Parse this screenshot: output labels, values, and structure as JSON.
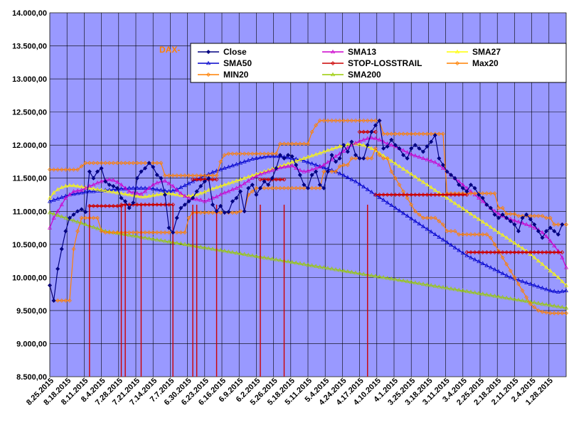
{
  "chart_data": {
    "type": "line",
    "title": "DAX-",
    "xlabel": "",
    "ylabel": "",
    "ylim": [
      8500,
      14000
    ],
    "yticks": [
      "14.000,00",
      "13.500,00",
      "13.000,00",
      "12.500,00",
      "12.000,00",
      "11.500,00",
      "11.000,00",
      "10.500,00",
      "10.000,00",
      "9.500,00",
      "9.000,00",
      "8.500,00"
    ],
    "ytick_values": [
      14000,
      13500,
      13000,
      12500,
      12000,
      11500,
      11000,
      10500,
      10000,
      9500,
      9000,
      8500
    ],
    "xticks": [
      "8.25.2015",
      "8.18.2015",
      "8.11.2015",
      "8.4.2015",
      "7.28.2015",
      "7.21.2015",
      "7.14.2015",
      "7.7.2015",
      "6.30.2015",
      "6.23.2015",
      "6.16.2015",
      "6.9.2015",
      "6.2.2015",
      "5.26.2015",
      "5.18.2015",
      "5.11.2015",
      "5.4.2015",
      "4.24.2015",
      "4.17.2015",
      "4.10.2015",
      "4.1.2015",
      "3.25.2015",
      "3.18.2015",
      "3.11.2015",
      "3.4.2015",
      "2.25.2015",
      "2.18.2015",
      "2.11.2015",
      "2.4.2015",
      "1.28.2015"
    ],
    "x_direction": "descending dates left to right",
    "grid": true,
    "legend_placement": "top",
    "series": [
      {
        "name": "Close",
        "color": "#000080",
        "marker": "diamond-filled",
        "values": [
          9880,
          9650,
          10130,
          10430,
          10700,
          10900,
          10950,
          11000,
          11030,
          10990,
          11600,
          11500,
          11600,
          11650,
          11450,
          11400,
          11380,
          11350,
          11200,
          11150,
          11050,
          11130,
          11500,
          11600,
          11650,
          11730,
          11670,
          11550,
          11500,
          11250,
          10750,
          10680,
          10900,
          11050,
          11100,
          11150,
          11200,
          11300,
          11380,
          11450,
          11500,
          11100,
          11000,
          11080,
          10980,
          10990,
          11150,
          11200,
          11300,
          11000,
          11350,
          11400,
          11250,
          11350,
          11450,
          11400,
          11500,
          11650,
          11850,
          11800,
          11850,
          11830,
          11700,
          11550,
          11400,
          11350,
          11550,
          11600,
          11400,
          11350,
          11600,
          11850,
          11750,
          11800,
          12000,
          11900,
          12050,
          11850,
          11800,
          11800,
          12000,
          12200,
          12300,
          12370,
          11950,
          11980,
          12080,
          12000,
          11950,
          11850,
          11800,
          11950,
          12000,
          11950,
          11900,
          11980,
          12050,
          12150,
          11800,
          11700,
          11600,
          11550,
          11500,
          11400,
          11350,
          11300,
          11400,
          11350,
          11250,
          11200,
          11100,
          11050,
          10950,
          10900,
          10950,
          10900,
          10850,
          10800,
          10700,
          10900,
          10950,
          10880,
          10800,
          10700,
          10600,
          10700,
          10750,
          10700,
          10650,
          10800
        ]
      },
      {
        "name": "SMA13",
        "color": "#cc00cc",
        "marker": "triangle-open",
        "values": [
          10750,
          10900,
          11000,
          11100,
          11200,
          11250,
          11300,
          11310,
          11320,
          11350,
          11380,
          11400,
          11430,
          11450,
          11470,
          11480,
          11470,
          11440,
          11400,
          11350,
          11300,
          11280,
          11270,
          11260,
          11300,
          11350,
          11400,
          11430,
          11450,
          11460,
          11420,
          11380,
          11320,
          11270,
          11230,
          11200,
          11190,
          11180,
          11170,
          11150,
          11170,
          11200,
          11220,
          11250,
          11280,
          11300,
          11330,
          11350,
          11380,
          11420,
          11460,
          11500,
          11530,
          11560,
          11580,
          11600,
          11620,
          11640,
          11660,
          11670,
          11680,
          11690,
          11650,
          11620,
          11600,
          11610,
          11630,
          11650,
          11670,
          11700,
          11740,
          11780,
          11830,
          11870,
          11910,
          11960,
          12000,
          12030,
          12060,
          12080,
          12100,
          12110,
          12100,
          12080,
          12050,
          12020,
          12000,
          11980,
          11950,
          11920,
          11890,
          11860,
          11840,
          11820,
          11800,
          11780,
          11760,
          11740,
          11700,
          11650,
          11600,
          11550,
          11500,
          11450,
          11400,
          11350,
          11300,
          11250,
          11200,
          11150,
          11100,
          11050,
          11000,
          10960,
          10930,
          10900,
          10880,
          10860,
          10840,
          10820,
          10800,
          10780,
          10750,
          10720,
          10680,
          10620,
          10550,
          10480,
          10400,
          10300,
          10150
        ]
      },
      {
        "name": "SMA27",
        "color": "#ffff00",
        "marker": "triangle-open",
        "values": [
          11200,
          11280,
          11330,
          11360,
          11380,
          11390,
          11390,
          11380,
          11370,
          11360,
          11350,
          11340,
          11330,
          11320,
          11310,
          11300,
          11290,
          11280,
          11270,
          11260,
          11250,
          11240,
          11230,
          11220,
          11220,
          11230,
          11240,
          11250,
          11260,
          11270,
          11270,
          11260,
          11250,
          11240,
          11230,
          11230,
          11240,
          11250,
          11270,
          11290,
          11320,
          11340,
          11360,
          11380,
          11400,
          11420,
          11440,
          11460,
          11480,
          11500,
          11520,
          11540,
          11560,
          11580,
          11600,
          11620,
          11640,
          11660,
          11680,
          11700,
          11720,
          11740,
          11760,
          11780,
          11800,
          11820,
          11840,
          11860,
          11880,
          11900,
          11920,
          11940,
          11960,
          11980,
          12000,
          12010,
          12020,
          12020,
          12010,
          12000,
          11980,
          11950,
          11920,
          11880,
          11840,
          11800,
          11760,
          11720,
          11680,
          11640,
          11600,
          11560,
          11520,
          11480,
          11440,
          11400,
          11360,
          11320,
          11280,
          11240,
          11200,
          11160,
          11120,
          11080,
          11040,
          11000,
          10960,
          10920,
          10880,
          10840,
          10800,
          10760,
          10720,
          10680,
          10640,
          10600,
          10560,
          10520,
          10480,
          10440,
          10400,
          10350,
          10300,
          10250,
          10200,
          10150,
          10100,
          10050,
          10000,
          9940,
          9880
        ]
      },
      {
        "name": "SMA50",
        "color": "#0000cc",
        "marker": "triangle-open",
        "values": [
          11150,
          11170,
          11190,
          11210,
          11230,
          11250,
          11260,
          11270,
          11280,
          11290,
          11300,
          11300,
          11310,
          11310,
          11320,
          11320,
          11330,
          11330,
          11340,
          11340,
          11350,
          11350,
          11350,
          11350,
          11350,
          11350,
          11340,
          11330,
          11320,
          11310,
          11300,
          11310,
          11330,
          11360,
          11390,
          11420,
          11450,
          11480,
          11510,
          11540,
          11560,
          11590,
          11610,
          11630,
          11650,
          11670,
          11690,
          11710,
          11730,
          11750,
          11770,
          11790,
          11800,
          11810,
          11820,
          11830,
          11830,
          11830,
          11830,
          11820,
          11810,
          11800,
          11790,
          11780,
          11760,
          11740,
          11720,
          11700,
          11680,
          11660,
          11640,
          11620,
          11600,
          11570,
          11540,
          11510,
          11480,
          11450,
          11410,
          11370,
          11330,
          11290,
          11250,
          11210,
          11170,
          11130,
          11090,
          11050,
          11010,
          10970,
          10930,
          10890,
          10850,
          10810,
          10770,
          10730,
          10690,
          10650,
          10610,
          10570,
          10530,
          10490,
          10450,
          10410,
          10370,
          10330,
          10300,
          10270,
          10240,
          10210,
          10180,
          10150,
          10120,
          10090,
          10060,
          10030,
          10000,
          9980,
          9960,
          9940,
          9920,
          9900,
          9880,
          9860,
          9840,
          9820,
          9800,
          9790,
          9780,
          9790,
          9800
        ]
      },
      {
        "name": "SMA200",
        "color": "#99cc00",
        "marker": "triangle-open",
        "values": [
          10980,
          10960,
          10940,
          10920,
          10900,
          10880,
          10860,
          10840,
          10820,
          10800,
          10780,
          10760,
          10740,
          10720,
          10700,
          10690,
          10680,
          10670,
          10660,
          10650,
          10640,
          10630,
          10620,
          10610,
          10600,
          10590,
          10580,
          10570,
          10560,
          10550,
          10540,
          10530,
          10520,
          10510,
          10500,
          10490,
          10480,
          10470,
          10460,
          10450,
          10440,
          10430,
          10420,
          10410,
          10400,
          10390,
          10380,
          10370,
          10360,
          10350,
          10340,
          10330,
          10320,
          10310,
          10300,
          10290,
          10280,
          10270,
          10260,
          10250,
          10240,
          10230,
          10220,
          10210,
          10200,
          10190,
          10180,
          10170,
          10160,
          10150,
          10140,
          10130,
          10120,
          10110,
          10100,
          10090,
          10080,
          10070,
          10060,
          10050,
          10040,
          10030,
          10020,
          10010,
          10000,
          9990,
          9980,
          9970,
          9960,
          9950,
          9940,
          9930,
          9920,
          9910,
          9900,
          9890,
          9880,
          9870,
          9860,
          9850,
          9840,
          9830,
          9820,
          9810,
          9800,
          9790,
          9780,
          9770,
          9760,
          9750,
          9740,
          9730,
          9720,
          9710,
          9700,
          9690,
          9680,
          9670,
          9660,
          9650,
          9640,
          9630,
          9620,
          9610,
          9600,
          9590,
          9580,
          9570,
          9560,
          9550,
          9540
        ]
      },
      {
        "name": "STOP-LOSSTRAIL",
        "color": "#cc0000",
        "marker": "diamond-open",
        "segments": [
          {
            "from": 10,
            "to": 18,
            "value": 11080
          },
          {
            "from": 18,
            "to": 23,
            "value": 11100
          },
          {
            "from": 23,
            "to": 31,
            "value": 11100
          },
          {
            "from": 36,
            "to": 42,
            "value": 11480
          },
          {
            "from": 53,
            "to": 59,
            "value": 11480
          },
          {
            "from": 78,
            "to": 82,
            "value": 12200
          },
          {
            "from": 82,
            "to": 105,
            "value": 11250
          },
          {
            "from": 105,
            "to": 129,
            "value": 10380
          }
        ],
        "dips": [
          10,
          18,
          19,
          23,
          31,
          36,
          37,
          42,
          53,
          59,
          80
        ]
      },
      {
        "name": "Max20",
        "color": "#ff8000",
        "marker": "diamond-open",
        "values": [
          11630,
          11630,
          11630,
          11630,
          11630,
          11630,
          11630,
          11630,
          11680,
          11730,
          11730,
          11730,
          11730,
          11730,
          11730,
          11730,
          11730,
          11730,
          11730,
          11730,
          11730,
          11730,
          11730,
          11730,
          11730,
          11730,
          11730,
          11730,
          11730,
          11540,
          11540,
          11540,
          11540,
          11540,
          11540,
          11540,
          11540,
          11540,
          11540,
          11540,
          11540,
          11540,
          11540,
          11750,
          11850,
          11870,
          11870,
          11870,
          11870,
          11870,
          11870,
          11870,
          11870,
          11870,
          11870,
          11870,
          11870,
          11870,
          12020,
          12020,
          12020,
          12020,
          12020,
          12020,
          12020,
          12020,
          12200,
          12300,
          12370,
          12370,
          12370,
          12370,
          12370,
          12370,
          12370,
          12370,
          12370,
          12370,
          12370,
          12370,
          12370,
          12370,
          12370,
          12370,
          12170,
          12170,
          12170,
          12170,
          12170,
          12170,
          12170,
          12170,
          12170,
          12170,
          12170,
          12170,
          12170,
          12170,
          12170,
          12170,
          11270,
          11270,
          11270,
          11270,
          11270,
          11270,
          11270,
          11270,
          11270,
          11270,
          11270,
          11270,
          11270,
          11050,
          11050,
          10960,
          10960,
          10960,
          10930,
          10930,
          10930,
          10930,
          10930,
          10930,
          10930,
          10900,
          10900,
          10800,
          10800,
          10800,
          10800
        ]
      },
      {
        "name": "MIN20",
        "color": "#ff8000",
        "marker": "diamond-open",
        "values": [
          9880,
          9650,
          9650,
          9650,
          9650,
          9650,
          10430,
          10700,
          10900,
          10900,
          10900,
          10900,
          10900,
          10700,
          10680,
          10680,
          10680,
          10680,
          10680,
          10680,
          10680,
          10680,
          10680,
          10680,
          10680,
          10680,
          10680,
          10680,
          10680,
          10680,
          10680,
          10680,
          10680,
          10680,
          10680,
          10900,
          10980,
          10980,
          10980,
          10980,
          10980,
          10980,
          10980,
          10980,
          10980,
          10980,
          10980,
          10980,
          11000,
          11000,
          11250,
          11300,
          11350,
          11350,
          11350,
          11350,
          11350,
          11350,
          11350,
          11350,
          11350,
          11350,
          11350,
          11350,
          11350,
          11350,
          11350,
          11350,
          11350,
          11600,
          11600,
          11600,
          11600,
          11680,
          11700,
          11700,
          11800,
          11800,
          11800,
          11800,
          11800,
          11800,
          11950,
          11850,
          11800,
          11800,
          11600,
          11500,
          11400,
          11300,
          11200,
          11100,
          11000,
          10950,
          10900,
          10900,
          10900,
          10900,
          10850,
          10800,
          10700,
          10700,
          10700,
          10650,
          10650,
          10650,
          10650,
          10650,
          10650,
          10650,
          10650,
          10600,
          10500,
          10400,
          10300,
          10200,
          10100,
          10000,
          9900,
          9800,
          9700,
          9600,
          9550,
          9500,
          9480,
          9470,
          9460,
          9460,
          9460,
          9460,
          9460
        ]
      }
    ],
    "legend": [
      "Close",
      "SMA13",
      "SMA27",
      "SMA50",
      "STOP-LOSSTRAIL",
      "Max20",
      "MIN20",
      "SMA200"
    ]
  }
}
